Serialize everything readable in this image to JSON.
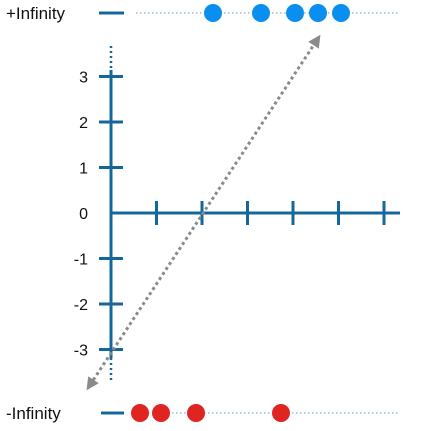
{
  "colors": {
    "axis": "#14679a",
    "positive_dots": "#0a8ff0",
    "negative_dots": "#e02421",
    "guide_line": "#6e98c2",
    "dashed_arrow": "#8a8a8a",
    "text": "#111111"
  },
  "labels": {
    "plus_infinity": "+Infinity",
    "minus_infinity": "-Infinity"
  },
  "chart_data": {
    "type": "diagram",
    "y_tick_labels": [
      "3",
      "2",
      "1",
      "0",
      "-1",
      "-2",
      "-3"
    ],
    "y_ticks": [
      3,
      2,
      1,
      0,
      -1,
      -2,
      -3
    ],
    "x_tick_count": 6,
    "plus_infinity_dot_count": 5,
    "minus_infinity_dot_count": 4
  }
}
